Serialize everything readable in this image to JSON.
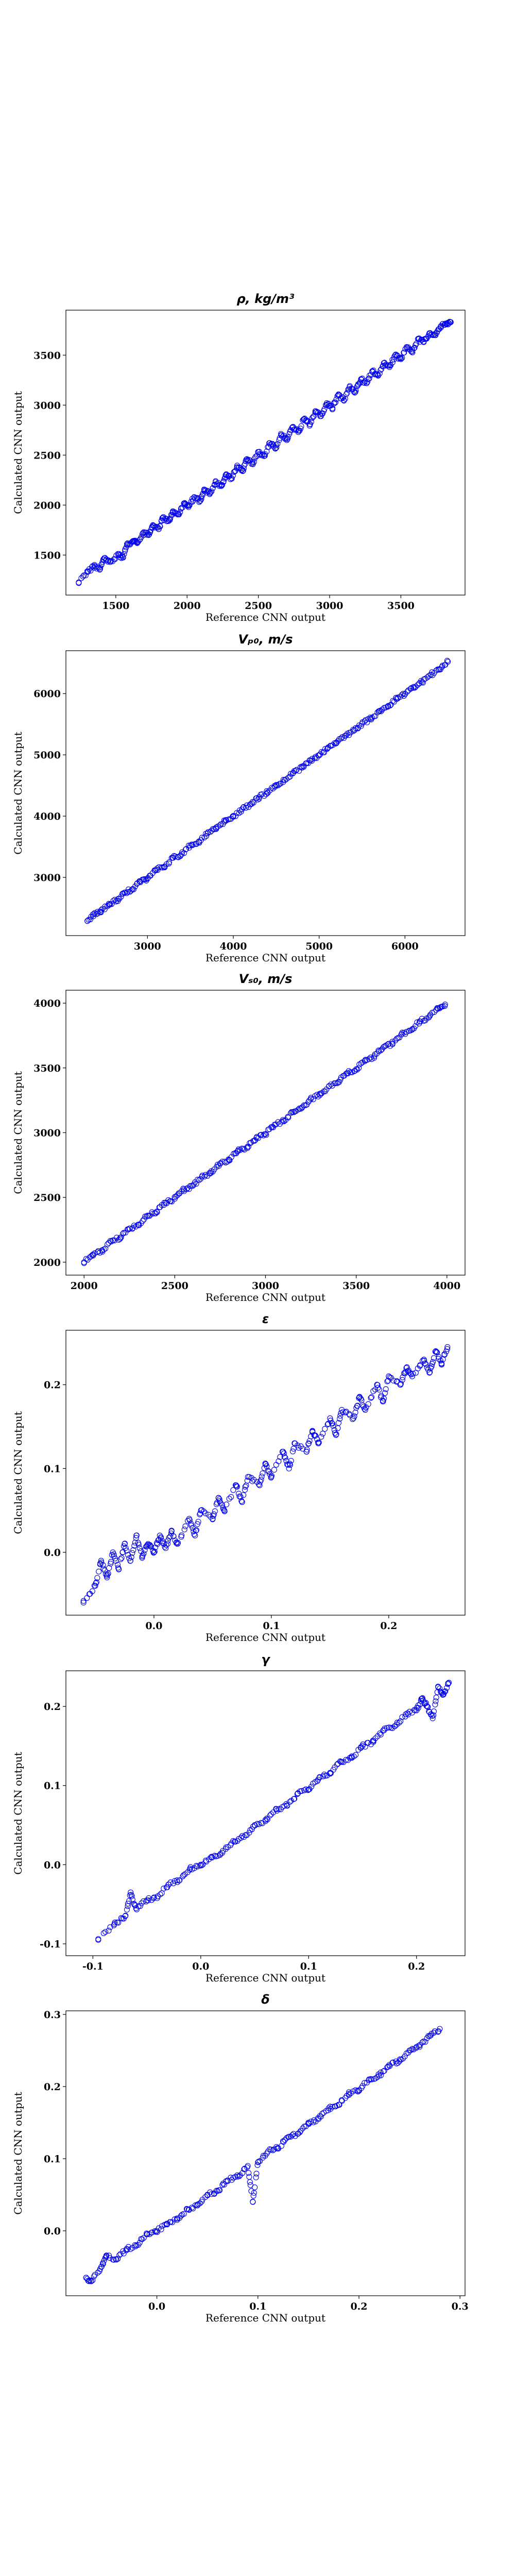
{
  "chart_data": [
    {
      "type": "scatter",
      "title": "ρ, kg/m³",
      "xlabel": "Reference CNN output",
      "ylabel": "Calculated CNN output",
      "xlim": [
        1150,
        3950
      ],
      "ylim": [
        1100,
        3950
      ],
      "xticks": [
        1500,
        2000,
        2500,
        3000,
        3500
      ],
      "yticks": [
        1500,
        2000,
        2500,
        3000,
        3500
      ],
      "tick_decimals": 0,
      "color": "#0000ee",
      "marker": "open-circle",
      "grid": false,
      "points": [
        [
          1240,
          1220
        ],
        [
          1300,
          1330
        ],
        [
          1350,
          1390
        ],
        [
          1390,
          1360
        ],
        [
          1420,
          1470
        ],
        [
          1460,
          1430
        ],
        [
          1520,
          1500
        ],
        [
          1550,
          1480
        ],
        [
          1580,
          1600
        ],
        [
          1620,
          1640
        ],
        [
          1650,
          1620
        ],
        [
          1690,
          1720
        ],
        [
          1730,
          1700
        ],
        [
          1760,
          1800
        ],
        [
          1800,
          1760
        ],
        [
          1830,
          1870
        ],
        [
          1870,
          1840
        ],
        [
          1900,
          1930
        ],
        [
          1940,
          1910
        ],
        [
          1980,
          2010
        ],
        [
          2010,
          1980
        ],
        [
          2050,
          2080
        ],
        [
          2090,
          2040
        ],
        [
          2120,
          2150
        ],
        [
          2160,
          2120
        ],
        [
          2200,
          2230
        ],
        [
          2240,
          2190
        ],
        [
          2270,
          2300
        ],
        [
          2310,
          2270
        ],
        [
          2350,
          2380
        ],
        [
          2390,
          2340
        ],
        [
          2420,
          2460
        ],
        [
          2460,
          2420
        ],
        [
          2500,
          2530
        ],
        [
          2540,
          2490
        ],
        [
          2580,
          2620
        ],
        [
          2620,
          2570
        ],
        [
          2660,
          2700
        ],
        [
          2700,
          2650
        ],
        [
          2740,
          2780
        ],
        [
          2780,
          2730
        ],
        [
          2820,
          2860
        ],
        [
          2860,
          2810
        ],
        [
          2900,
          2940
        ],
        [
          2940,
          2890
        ],
        [
          2980,
          3020
        ],
        [
          3020,
          2970
        ],
        [
          3060,
          3100
        ],
        [
          3100,
          3050
        ],
        [
          3140,
          3180
        ],
        [
          3180,
          3130
        ],
        [
          3220,
          3260
        ],
        [
          3260,
          3220
        ],
        [
          3300,
          3340
        ],
        [
          3340,
          3300
        ],
        [
          3380,
          3420
        ],
        [
          3420,
          3380
        ],
        [
          3460,
          3500
        ],
        [
          3500,
          3460
        ],
        [
          3540,
          3580
        ],
        [
          3580,
          3540
        ],
        [
          3620,
          3660
        ],
        [
          3660,
          3630
        ],
        [
          3700,
          3720
        ],
        [
          3740,
          3700
        ],
        [
          3780,
          3790
        ],
        [
          3820,
          3810
        ],
        [
          3850,
          3830
        ]
      ]
    },
    {
      "type": "scatter",
      "title": "Vₚ₀, m/s",
      "xlabel": "Reference CNN output",
      "ylabel": "Calculated CNN output",
      "xlim": [
        2050,
        6700
      ],
      "ylim": [
        2050,
        6700
      ],
      "xticks": [
        3000,
        4000,
        5000,
        6000
      ],
      "yticks": [
        3000,
        4000,
        5000,
        6000
      ],
      "tick_decimals": 0,
      "color": "#0000ee",
      "marker": "open-circle",
      "grid": false,
      "points": [
        [
          2300,
          2290
        ],
        [
          2380,
          2400
        ],
        [
          2460,
          2440
        ],
        [
          2550,
          2570
        ],
        [
          2640,
          2620
        ],
        [
          2730,
          2750
        ],
        [
          2820,
          2800
        ],
        [
          2910,
          2930
        ],
        [
          3000,
          2980
        ],
        [
          3100,
          3120
        ],
        [
          3200,
          3180
        ],
        [
          3300,
          3320
        ],
        [
          3400,
          3380
        ],
        [
          3500,
          3520
        ],
        [
          3600,
          3580
        ],
        [
          3700,
          3720
        ],
        [
          3800,
          3790
        ],
        [
          3900,
          3910
        ],
        [
          4000,
          3990
        ],
        [
          4100,
          4110
        ],
        [
          4200,
          4190
        ],
        [
          4300,
          4310
        ],
        [
          4400,
          4390
        ],
        [
          4500,
          4510
        ],
        [
          4600,
          4590
        ],
        [
          4700,
          4710
        ],
        [
          4800,
          4790
        ],
        [
          4900,
          4910
        ],
        [
          5000,
          4990
        ],
        [
          5100,
          5110
        ],
        [
          5200,
          5190
        ],
        [
          5300,
          5310
        ],
        [
          5400,
          5390
        ],
        [
          5500,
          5510
        ],
        [
          5600,
          5590
        ],
        [
          5700,
          5710
        ],
        [
          5800,
          5790
        ],
        [
          5900,
          5910
        ],
        [
          6000,
          5990
        ],
        [
          6100,
          6110
        ],
        [
          6200,
          6190
        ],
        [
          6300,
          6310
        ],
        [
          6400,
          6390
        ],
        [
          6500,
          6520
        ]
      ]
    },
    {
      "type": "scatter",
      "title": "Vₛ₀, m/s",
      "xlabel": "Reference CNN output",
      "ylabel": "Calculated CNN output",
      "xlim": [
        1900,
        4100
      ],
      "ylim": [
        1900,
        4100
      ],
      "xticks": [
        2000,
        2500,
        3000,
        3500,
        4000
      ],
      "yticks": [
        2000,
        2500,
        3000,
        3500,
        4000
      ],
      "tick_decimals": 0,
      "color": "#0000ee",
      "marker": "open-circle",
      "grid": false,
      "points": [
        [
          2000,
          2000
        ],
        [
          2050,
          2060
        ],
        [
          2100,
          2090
        ],
        [
          2150,
          2160
        ],
        [
          2200,
          2190
        ],
        [
          2250,
          2260
        ],
        [
          2300,
          2290
        ],
        [
          2350,
          2360
        ],
        [
          2400,
          2390
        ],
        [
          2450,
          2460
        ],
        [
          2500,
          2490
        ],
        [
          2550,
          2560
        ],
        [
          2600,
          2590
        ],
        [
          2650,
          2660
        ],
        [
          2700,
          2690
        ],
        [
          2750,
          2760
        ],
        [
          2800,
          2790
        ],
        [
          2850,
          2860
        ],
        [
          2900,
          2890
        ],
        [
          2950,
          2960
        ],
        [
          3000,
          2990
        ],
        [
          3050,
          3060
        ],
        [
          3100,
          3090
        ],
        [
          3150,
          3160
        ],
        [
          3200,
          3190
        ],
        [
          3250,
          3260
        ],
        [
          3300,
          3290
        ],
        [
          3350,
          3360
        ],
        [
          3400,
          3390
        ],
        [
          3450,
          3460
        ],
        [
          3500,
          3490
        ],
        [
          3550,
          3560
        ],
        [
          3600,
          3590
        ],
        [
          3650,
          3660
        ],
        [
          3700,
          3690
        ],
        [
          3750,
          3760
        ],
        [
          3800,
          3790
        ],
        [
          3850,
          3860
        ],
        [
          3900,
          3890
        ],
        [
          3950,
          3960
        ],
        [
          3990,
          3990
        ]
      ]
    },
    {
      "type": "scatter",
      "title": "ε",
      "xlabel": "Reference CNN output",
      "ylabel": "Calculated CNN output",
      "xlim": [
        -0.075,
        0.265
      ],
      "ylim": [
        -0.075,
        0.265
      ],
      "xticks": [
        0.0,
        0.1,
        0.2
      ],
      "yticks": [
        0.0,
        0.1,
        0.2
      ],
      "tick_decimals": 1,
      "color": "#0000ee",
      "marker": "open-circle",
      "grid": false,
      "points": [
        [
          -0.06,
          -0.06
        ],
        [
          -0.05,
          -0.04
        ],
        [
          -0.045,
          -0.01
        ],
        [
          -0.04,
          -0.03
        ],
        [
          -0.035,
          0.0
        ],
        [
          -0.03,
          -0.02
        ],
        [
          -0.025,
          0.01
        ],
        [
          -0.02,
          -0.01
        ],
        [
          -0.015,
          0.02
        ],
        [
          -0.01,
          -0.005
        ],
        [
          -0.005,
          0.01
        ],
        [
          0.0,
          0.0
        ],
        [
          0.005,
          0.02
        ],
        [
          0.01,
          0.005
        ],
        [
          0.015,
          0.025
        ],
        [
          0.02,
          0.01
        ],
        [
          0.03,
          0.04
        ],
        [
          0.035,
          0.02
        ],
        [
          0.04,
          0.05
        ],
        [
          0.05,
          0.04
        ],
        [
          0.055,
          0.065
        ],
        [
          0.06,
          0.05
        ],
        [
          0.07,
          0.08
        ],
        [
          0.075,
          0.06
        ],
        [
          0.08,
          0.09
        ],
        [
          0.09,
          0.08
        ],
        [
          0.095,
          0.105
        ],
        [
          0.1,
          0.09
        ],
        [
          0.11,
          0.12
        ],
        [
          0.115,
          0.1
        ],
        [
          0.12,
          0.13
        ],
        [
          0.13,
          0.12
        ],
        [
          0.135,
          0.145
        ],
        [
          0.14,
          0.13
        ],
        [
          0.15,
          0.16
        ],
        [
          0.155,
          0.14
        ],
        [
          0.16,
          0.17
        ],
        [
          0.17,
          0.16
        ],
        [
          0.175,
          0.185
        ],
        [
          0.18,
          0.17
        ],
        [
          0.19,
          0.2
        ],
        [
          0.195,
          0.18
        ],
        [
          0.2,
          0.21
        ],
        [
          0.21,
          0.2
        ],
        [
          0.215,
          0.22
        ],
        [
          0.22,
          0.21
        ],
        [
          0.23,
          0.23
        ],
        [
          0.235,
          0.215
        ],
        [
          0.24,
          0.24
        ],
        [
          0.245,
          0.225
        ],
        [
          0.25,
          0.245
        ]
      ]
    },
    {
      "type": "scatter",
      "title": "γ",
      "xlabel": "Reference CNN output",
      "ylabel": "Calculated CNN output",
      "xlim": [
        -0.125,
        0.245
      ],
      "ylim": [
        -0.115,
        0.245
      ],
      "xticks": [
        -0.1,
        0.0,
        0.1,
        0.2
      ],
      "yticks": [
        -0.1,
        0.0,
        0.1,
        0.2
      ],
      "tick_decimals": 1,
      "color": "#0000ee",
      "marker": "open-circle",
      "grid": false,
      "points": [
        [
          -0.095,
          -0.095
        ],
        [
          -0.08,
          -0.075
        ],
        [
          -0.07,
          -0.065
        ],
        [
          -0.065,
          -0.035
        ],
        [
          -0.06,
          -0.055
        ],
        [
          -0.05,
          -0.045
        ],
        [
          -0.04,
          -0.04
        ],
        [
          -0.03,
          -0.025
        ],
        [
          -0.02,
          -0.02
        ],
        [
          -0.01,
          -0.005
        ],
        [
          0.0,
          0.0
        ],
        [
          0.01,
          0.01
        ],
        [
          0.02,
          0.015
        ],
        [
          0.03,
          0.03
        ],
        [
          0.04,
          0.035
        ],
        [
          0.05,
          0.05
        ],
        [
          0.06,
          0.055
        ],
        [
          0.07,
          0.07
        ],
        [
          0.08,
          0.075
        ],
        [
          0.09,
          0.09
        ],
        [
          0.1,
          0.095
        ],
        [
          0.11,
          0.11
        ],
        [
          0.12,
          0.115
        ],
        [
          0.13,
          0.13
        ],
        [
          0.14,
          0.135
        ],
        [
          0.15,
          0.15
        ],
        [
          0.16,
          0.155
        ],
        [
          0.17,
          0.17
        ],
        [
          0.18,
          0.175
        ],
        [
          0.19,
          0.19
        ],
        [
          0.2,
          0.195
        ],
        [
          0.205,
          0.21
        ],
        [
          0.21,
          0.2
        ],
        [
          0.215,
          0.185
        ],
        [
          0.22,
          0.225
        ],
        [
          0.225,
          0.215
        ],
        [
          0.23,
          0.23
        ]
      ]
    },
    {
      "type": "scatter",
      "title": "δ",
      "xlabel": "Reference CNN output",
      "ylabel": "Calculated CNN output",
      "xlim": [
        -0.09,
        0.305
      ],
      "ylim": [
        -0.09,
        0.305
      ],
      "xticks": [
        0.0,
        0.1,
        0.2,
        0.3
      ],
      "yticks": [
        0.0,
        0.1,
        0.2,
        0.3
      ],
      "tick_decimals": 1,
      "color": "#0000ee",
      "marker": "open-circle",
      "grid": false,
      "points": [
        [
          -0.07,
          -0.065
        ],
        [
          -0.065,
          -0.07
        ],
        [
          -0.055,
          -0.05
        ],
        [
          -0.05,
          -0.035
        ],
        [
          -0.04,
          -0.04
        ],
        [
          -0.03,
          -0.025
        ],
        [
          -0.02,
          -0.02
        ],
        [
          -0.01,
          -0.005
        ],
        [
          0.0,
          0.0
        ],
        [
          0.01,
          0.01
        ],
        [
          0.02,
          0.015
        ],
        [
          0.03,
          0.03
        ],
        [
          0.04,
          0.035
        ],
        [
          0.05,
          0.05
        ],
        [
          0.06,
          0.055
        ],
        [
          0.07,
          0.07
        ],
        [
          0.08,
          0.075
        ],
        [
          0.09,
          0.09
        ],
        [
          0.095,
          0.04
        ],
        [
          0.1,
          0.095
        ],
        [
          0.11,
          0.11
        ],
        [
          0.12,
          0.115
        ],
        [
          0.13,
          0.13
        ],
        [
          0.14,
          0.135
        ],
        [
          0.15,
          0.15
        ],
        [
          0.16,
          0.155
        ],
        [
          0.17,
          0.17
        ],
        [
          0.18,
          0.175
        ],
        [
          0.19,
          0.19
        ],
        [
          0.2,
          0.195
        ],
        [
          0.21,
          0.21
        ],
        [
          0.22,
          0.215
        ],
        [
          0.23,
          0.23
        ],
        [
          0.24,
          0.235
        ],
        [
          0.25,
          0.25
        ],
        [
          0.26,
          0.255
        ],
        [
          0.27,
          0.27
        ],
        [
          0.28,
          0.28
        ]
      ]
    }
  ]
}
